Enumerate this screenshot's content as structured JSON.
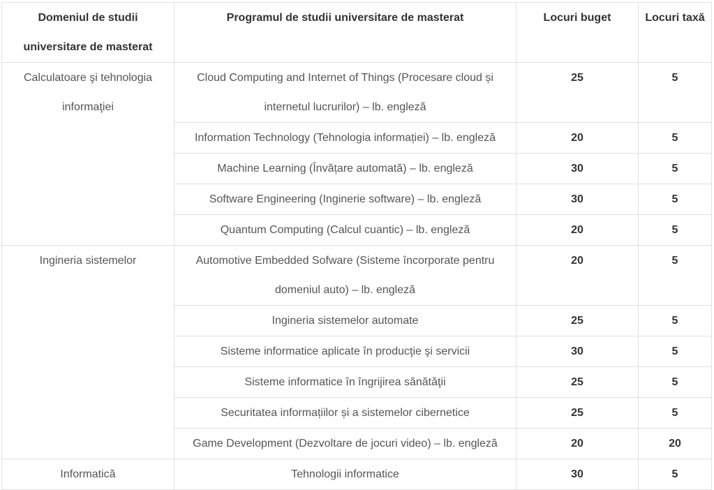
{
  "headers": {
    "domain": "Domeniul de studii universitare de masterat",
    "program": "Programul de studii universitare de masterat",
    "budget": "Locuri buget",
    "fee": "Locuri taxă"
  },
  "groups": [
    {
      "domain": "Calculatoare şi tehnologia informaţiei",
      "rows": [
        {
          "program": "Cloud Computing and Internet of Things (Procesare cloud și internetul lucrurilor) – lb. engleză",
          "budget": "25",
          "fee": "5"
        },
        {
          "program": "Information Technology (Tehnologia informației) – lb. engleză",
          "budget": "20",
          "fee": "5"
        },
        {
          "program": "Machine Learning (Învățare automată) – lb. engleză",
          "budget": "30",
          "fee": "5"
        },
        {
          "program": "Software Engineering (Inginerie software) – lb. engleză",
          "budget": "30",
          "fee": "5"
        },
        {
          "program": "Quantum Computing (Calcul cuantic) – lb. engleză",
          "budget": "20",
          "fee": "5"
        }
      ]
    },
    {
      "domain": "Ingineria sistemelor",
      "rows": [
        {
          "program": "Automotive Embedded Sofware (Sisteme încorporate pentru domeniul auto) – lb. engleză",
          "budget": "20",
          "fee": "5"
        },
        {
          "program": "Ingineria sistemelor automate",
          "budget": "25",
          "fee": "5"
        },
        {
          "program": "Sisteme informatice aplicate în producţie şi servicii",
          "budget": "30",
          "fee": "5"
        },
        {
          "program": "Sisteme informatice în îngrijirea sănătăţii",
          "budget": "25",
          "fee": "5"
        },
        {
          "program": "Securitatea informațiilor și a sistemelor cibernetice",
          "budget": "25",
          "fee": "5"
        },
        {
          "program": "Game Development (Dezvoltare de jocuri video) – lb. engleză",
          "budget": "20",
          "fee": "20"
        }
      ]
    },
    {
      "domain": "Informatică",
      "rows": [
        {
          "program": "Tehnologii informatice",
          "budget": "30",
          "fee": "5"
        }
      ]
    }
  ]
}
